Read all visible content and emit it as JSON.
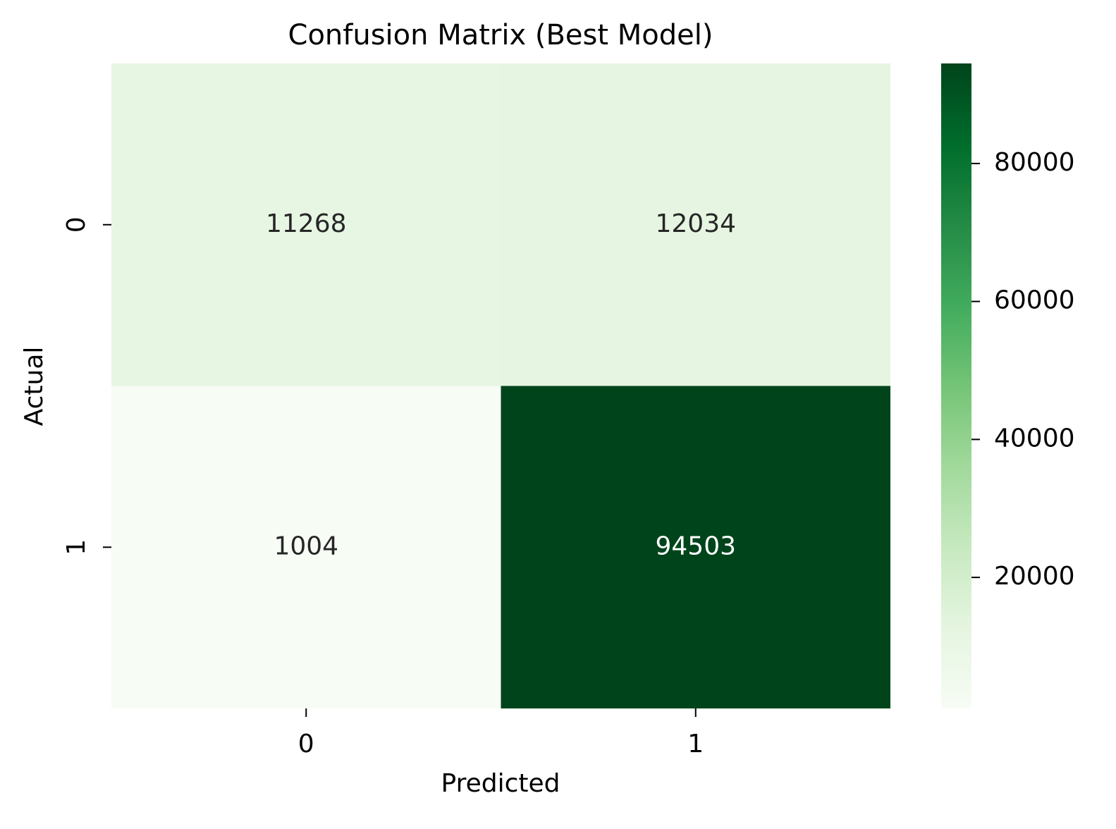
{
  "chart_data": {
    "type": "heatmap",
    "title": "Confusion Matrix (Best Model)",
    "xlabel": "Predicted",
    "ylabel": "Actual",
    "x_categories": [
      "0",
      "1"
    ],
    "y_categories": [
      "0",
      "1"
    ],
    "values": [
      [
        11268,
        12034
      ],
      [
        1004,
        94503
      ]
    ],
    "colormap": [
      "#f7fcf5",
      "#e5f5e0",
      "#c7e9c0",
      "#a1d99b",
      "#74c476",
      "#41ab5d",
      "#238b45",
      "#006d2c",
      "#00441b"
    ],
    "clim": [
      1004,
      94503
    ],
    "colorbar_ticks": [
      20000,
      40000,
      60000,
      80000
    ]
  }
}
